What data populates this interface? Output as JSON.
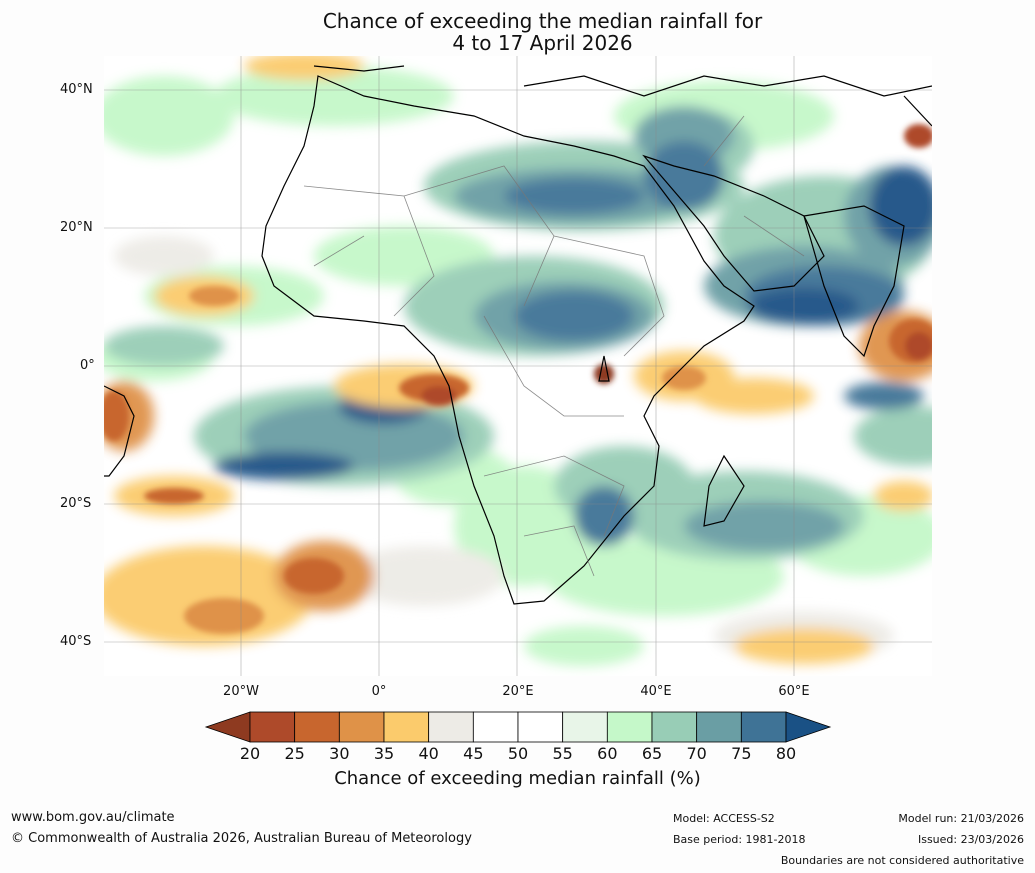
{
  "title": {
    "line1": "Chance of exceeding the median rainfall for",
    "line2": "4 to 17 April 2026"
  },
  "map": {
    "lat_labels": [
      "40°N",
      "20°N",
      "0°",
      "20°S",
      "40°S"
    ],
    "lon_labels": [
      "20°W",
      "0°",
      "20°E",
      "40°E",
      "60°E"
    ],
    "region": "Africa"
  },
  "colorbar": {
    "ticks": [
      "20",
      "25",
      "30",
      "35",
      "40",
      "45",
      "50",
      "55",
      "60",
      "65",
      "70",
      "75",
      "80"
    ],
    "colors": [
      "#8e3a20",
      "#ae4a2a",
      "#c8662e",
      "#df9248",
      "#fbcb6c",
      "#edebe6",
      "#ffffff",
      "#ffffff",
      "#e8f5e8",
      "#c5f8c9",
      "#98cdb6",
      "#6a9ea4",
      "#3f7396",
      "#1a5185"
    ],
    "label": "Chance of exceeding median rainfall (%)"
  },
  "footer": {
    "website": "www.bom.gov.au/climate",
    "copyright": "© Commonwealth of Australia 2026, Australian Bureau of Meteorology",
    "model": "Model: ACCESS-S2",
    "base_period": "Base period: 1981-2018",
    "model_run": "Model run: 21/03/2026",
    "issued": "Issued: 23/03/2026",
    "disclaimer": "Boundaries are not considered authoritative"
  }
}
